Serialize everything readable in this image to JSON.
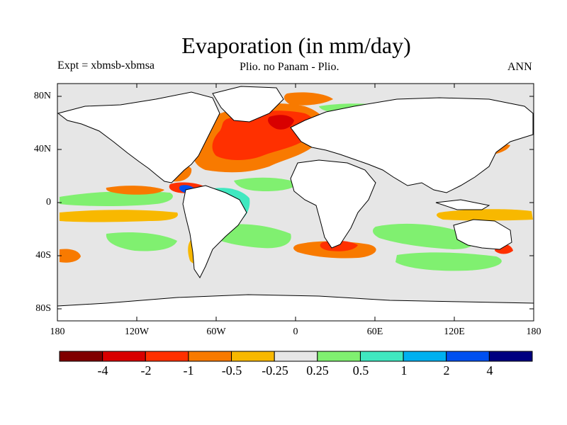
{
  "title": "Evaporation (in mm/day)",
  "expt_label": "Expt = xbmsb-xbmsa",
  "subtitle": "Plio. no Panam - Plio.",
  "season": "ANN",
  "y_ticks": [
    "80N",
    "40N",
    "0",
    "40S",
    "80S"
  ],
  "x_ticks": [
    "180",
    "120W",
    "60W",
    "0",
    "60E",
    "120E",
    "180"
  ],
  "colorbar": {
    "colors": [
      "#800000",
      "#d80000",
      "#ff3000",
      "#f87a00",
      "#f8b800",
      "#e6e6e6",
      "#80f070",
      "#40e8c0",
      "#00b0f0",
      "#0050f0",
      "#000080"
    ],
    "labels": [
      "-4",
      "-2",
      "-1",
      "-0.5",
      "-0.25",
      "0.25",
      "0.5",
      "1",
      "2",
      "4"
    ]
  },
  "colors": {
    "land": "#ffffff",
    "no_change_ocean": "#e6e6e6",
    "coast": "#000000"
  }
}
